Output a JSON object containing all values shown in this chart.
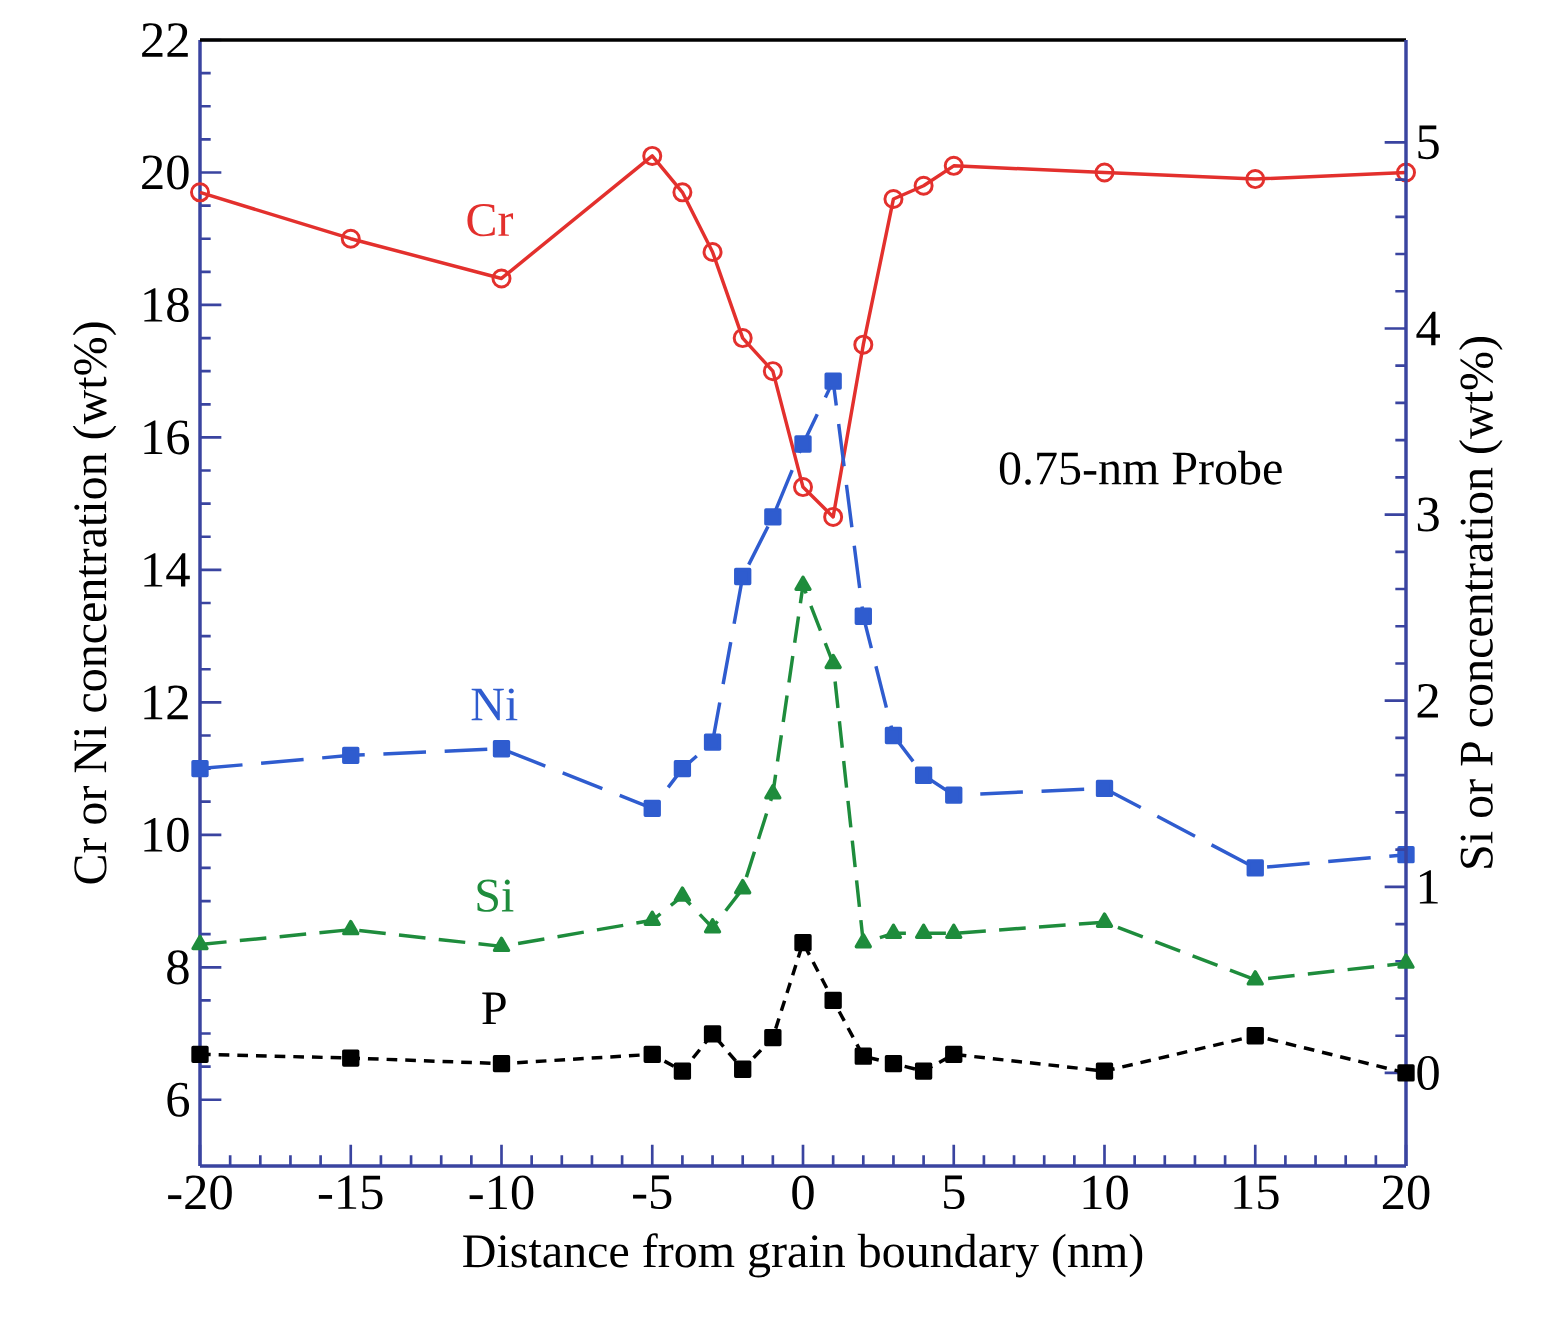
{
  "chart_data": {
    "type": "line",
    "xlabel": "Distance from grain boundary (nm)",
    "ylabel": "Cr or Ni concentration (wt%)",
    "y2label": "Si or P concentration (wt%)",
    "x": [
      -20,
      -15,
      -10,
      -5,
      -4,
      -3,
      -2,
      -1,
      0,
      1,
      2,
      3,
      4,
      5,
      10,
      15,
      20
    ],
    "xlim": [
      -20,
      20
    ],
    "xticks": [
      -20,
      -15,
      -10,
      -5,
      0,
      5,
      10,
      15,
      20
    ],
    "ylim": [
      5,
      22
    ],
    "yticks": [
      6,
      8,
      10,
      12,
      14,
      16,
      18,
      20,
      22
    ],
    "y2lim": [
      -0.5,
      5.55
    ],
    "y2ticks": [
      0,
      1,
      2,
      3,
      4,
      5
    ],
    "annotations": [
      "0.75-nm Probe"
    ],
    "series": [
      {
        "name": "Cr",
        "color": "#e3302d",
        "marker": "circle",
        "line_style": "solid",
        "values": [
          19.7,
          19.0,
          18.4,
          20.25,
          19.7,
          18.8,
          17.5,
          17.0,
          15.25,
          14.8,
          17.4,
          19.6,
          19.8,
          20.1,
          20.0,
          19.9,
          20.0
        ]
      },
      {
        "name": "Ni",
        "color": "#2f5ccf",
        "marker": "square",
        "line_style": "dashed",
        "values": [
          11.0,
          11.2,
          11.3,
          10.4,
          11.0,
          11.4,
          13.9,
          14.8,
          15.9,
          16.85,
          13.3,
          11.5,
          10.9,
          10.6,
          10.7,
          9.5,
          9.7
        ]
      },
      {
        "name": "Si",
        "color": "#1e8c3c",
        "marker": "triangle",
        "line_style": "dashed",
        "axis": "y2",
        "values": [
          0.69,
          0.77,
          0.68,
          0.82,
          0.95,
          0.78,
          0.99,
          1.5,
          2.62,
          2.2,
          0.7,
          0.75,
          0.75,
          0.75,
          0.81,
          0.5,
          0.59
        ]
      },
      {
        "name": "P",
        "color": "#000000",
        "marker": "square",
        "line_style": "dashed",
        "axis": "y2",
        "values": [
          0.1,
          0.08,
          0.05,
          0.1,
          0.01,
          0.21,
          0.02,
          0.19,
          0.7,
          0.39,
          0.09,
          0.05,
          0.01,
          0.1,
          0.01,
          0.2,
          0.0
        ]
      }
    ]
  }
}
